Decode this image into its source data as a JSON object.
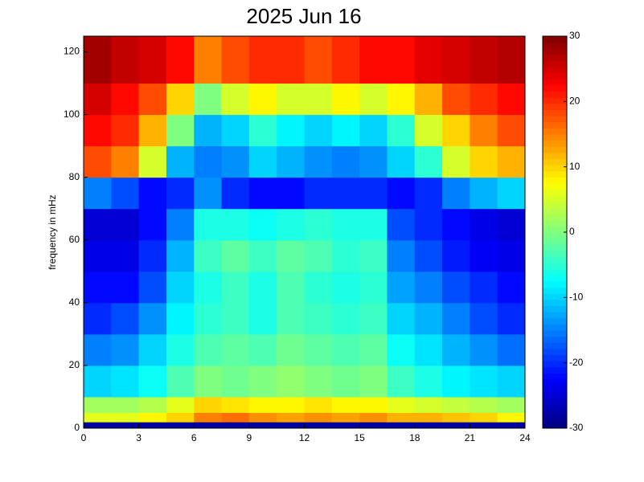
{
  "chart_data": {
    "type": "heatmap",
    "title": "2025 Jun 16",
    "y_label": "frequency in mHz",
    "xlim": [
      0,
      24
    ],
    "ylim": [
      0,
      125
    ],
    "xticks": [
      0,
      3,
      6,
      9,
      12,
      15,
      18,
      21,
      24
    ],
    "yticks": [
      0,
      20,
      40,
      60,
      80,
      100,
      120
    ],
    "xbins": [
      0,
      1.5,
      3,
      4.5,
      6,
      7.5,
      9,
      10.5,
      12,
      13.5,
      15,
      16.5,
      18,
      19.5,
      21,
      22.5,
      24
    ],
    "ybins": [
      0,
      2,
      5,
      10,
      20,
      30,
      40,
      50,
      60,
      70,
      80,
      90,
      100,
      110,
      125
    ],
    "colormap": "jet",
    "clim": [
      -30,
      30
    ],
    "cticks": [
      -30,
      -20,
      -10,
      0,
      10,
      20,
      30
    ],
    "z": [
      [
        -28,
        -28,
        -28,
        -28,
        -28,
        -28,
        -28,
        -28,
        -28,
        -28,
        -28,
        -28,
        -28,
        -28,
        -28,
        -28
      ],
      [
        6,
        6,
        8,
        10,
        15,
        16,
        14,
        13,
        14,
        13,
        14,
        12,
        12,
        11,
        10,
        8
      ],
      [
        2,
        2,
        3,
        6,
        10,
        9,
        8,
        8,
        9,
        8,
        8,
        6,
        5,
        4,
        3,
        2
      ],
      [
        -10,
        -9,
        -7,
        -3,
        0,
        -1,
        0,
        1,
        0,
        -1,
        0,
        -4,
        -6,
        -8,
        -9,
        -10
      ],
      [
        -15,
        -14,
        -10,
        -6,
        -3,
        -2,
        -3,
        -1,
        -2,
        -3,
        -2,
        -7,
        -9,
        -12,
        -14,
        -16
      ],
      [
        -20,
        -18,
        -14,
        -8,
        -5,
        -4,
        -6,
        -3,
        -4,
        -5,
        -4,
        -10,
        -12,
        -15,
        -18,
        -20
      ],
      [
        -22,
        -22,
        -18,
        -10,
        -6,
        -4,
        -6,
        -3,
        -5,
        -6,
        -5,
        -13,
        -15,
        -18,
        -20,
        -22
      ],
      [
        -24,
        -24,
        -20,
        -12,
        -4,
        -2,
        -4,
        -2,
        -3,
        -5,
        -4,
        -15,
        -18,
        -21,
        -23,
        -24
      ],
      [
        -25,
        -25,
        -22,
        -15,
        -6,
        -6,
        -7,
        -6,
        -5,
        -6,
        -6,
        -18,
        -20,
        -22,
        -24,
        -25
      ],
      [
        -15,
        -18,
        -22,
        -20,
        -14,
        -20,
        -22,
        -22,
        -20,
        -20,
        -20,
        -22,
        -20,
        -15,
        -12,
        -10
      ],
      [
        18,
        15,
        5,
        -12,
        -15,
        -14,
        -10,
        -12,
        -14,
        -15,
        -14,
        -10,
        -5,
        5,
        10,
        12
      ],
      [
        22,
        20,
        12,
        0,
        -12,
        -10,
        -5,
        -8,
        -10,
        -8,
        -10,
        -5,
        5,
        10,
        15,
        18
      ],
      [
        25,
        22,
        18,
        10,
        0,
        5,
        8,
        5,
        5,
        8,
        5,
        8,
        12,
        18,
        20,
        22
      ],
      [
        28,
        26,
        25,
        22,
        15,
        18,
        20,
        20,
        18,
        20,
        22,
        22,
        24,
        25,
        26,
        27
      ]
    ]
  }
}
